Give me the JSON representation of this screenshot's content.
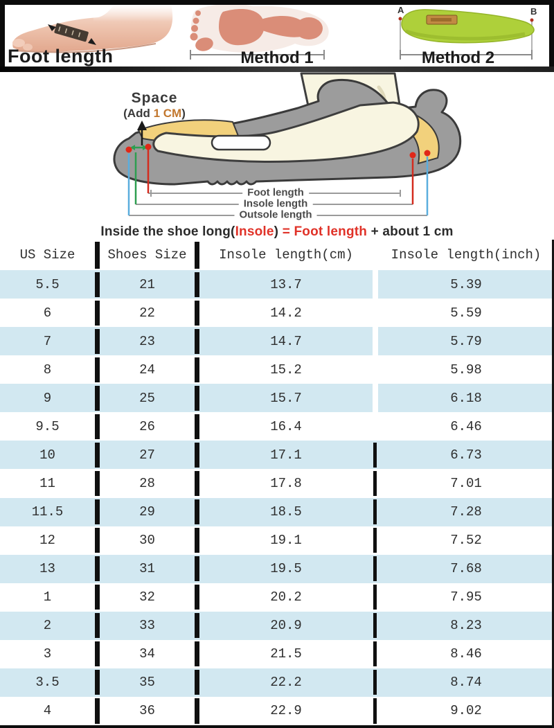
{
  "panels": {
    "foot_length": {
      "label": "Foot length"
    },
    "method1": {
      "label": "Method 1"
    },
    "method2": {
      "label": "Method 2",
      "point_a": "A",
      "point_b": "B"
    }
  },
  "diagram": {
    "space_title": "Space",
    "space_note_prefix": "(Add ",
    "space_note_value": "1 CM",
    "space_note_suffix": ")",
    "foot_length_label": "Foot length",
    "insole_length_label": "Insole length",
    "outsole_length_label": "Outsole length",
    "formula": {
      "lead": "Inside the shoe long(",
      "insole": "Insole",
      "close": ") ",
      "equals": "= ",
      "foot": "Foot length",
      "tail": " + about 1 cm"
    }
  },
  "size_table": {
    "headers": [
      "US Size",
      "Shoes Size",
      "Insole length(cm)",
      "Insole length(inch)"
    ],
    "rows": [
      [
        "5.5",
        "21",
        "13.7",
        "5.39"
      ],
      [
        "6",
        "22",
        "14.2",
        "5.59"
      ],
      [
        "7",
        "23",
        "14.7",
        "5.79"
      ],
      [
        "8",
        "24",
        "15.2",
        "5.98"
      ],
      [
        "9",
        "25",
        "15.7",
        "6.18"
      ],
      [
        "9.5",
        "26",
        "16.4",
        "6.46"
      ],
      [
        "10",
        "27",
        "17.1",
        "6.73"
      ],
      [
        "11",
        "28",
        "17.8",
        "7.01"
      ],
      [
        "11.5",
        "29",
        "18.5",
        "7.28"
      ],
      [
        "12",
        "30",
        "19.1",
        "7.52"
      ],
      [
        "13",
        "31",
        "19.5",
        "7.68"
      ],
      [
        "1",
        "32",
        "20.2",
        "7.95"
      ],
      [
        "2",
        "33",
        "20.9",
        "8.23"
      ],
      [
        "3",
        "34",
        "21.5",
        "8.46"
      ],
      [
        "3.5",
        "35",
        "22.2",
        "8.74"
      ],
      [
        "4",
        "36",
        "22.9",
        "9.02"
      ]
    ],
    "third_separator_black_from_row": 6
  },
  "colors": {
    "row_alt": "#d2e8f1",
    "separator": "#101010",
    "foot_line_red": "#d42b1e",
    "insole_line_green": "#2e9e50",
    "outsole_line_blue": "#5aaede",
    "space_highlight": "#c2772e",
    "formula_red": "#e03228",
    "insole_green": "#aed03a",
    "footprint_salmon": "#da8d78",
    "shoe_gray": "#9c9c9c",
    "lining_yellow": "#f2d17c",
    "foot_cream": "#f8f5e1"
  },
  "chart_data": {
    "type": "table",
    "title": "Shoe size conversion chart",
    "columns": [
      "US Size",
      "Shoes Size",
      "Insole length(cm)",
      "Insole length(inch)"
    ],
    "rows": [
      [
        5.5,
        21,
        13.7,
        5.39
      ],
      [
        6,
        22,
        14.2,
        5.59
      ],
      [
        7,
        23,
        14.7,
        5.79
      ],
      [
        8,
        24,
        15.2,
        5.98
      ],
      [
        9,
        25,
        15.7,
        6.18
      ],
      [
        9.5,
        26,
        16.4,
        6.46
      ],
      [
        10,
        27,
        17.1,
        6.73
      ],
      [
        11,
        28,
        17.8,
        7.01
      ],
      [
        11.5,
        29,
        18.5,
        7.28
      ],
      [
        12,
        30,
        19.1,
        7.52
      ],
      [
        13,
        31,
        19.5,
        7.68
      ],
      [
        1,
        32,
        20.2,
        7.95
      ],
      [
        2,
        33,
        20.9,
        8.23
      ],
      [
        3,
        34,
        21.5,
        8.46
      ],
      [
        3.5,
        35,
        22.2,
        8.74
      ],
      [
        4,
        36,
        22.9,
        9.02
      ]
    ],
    "notes": "Insole = Foot length + about 1 cm"
  }
}
